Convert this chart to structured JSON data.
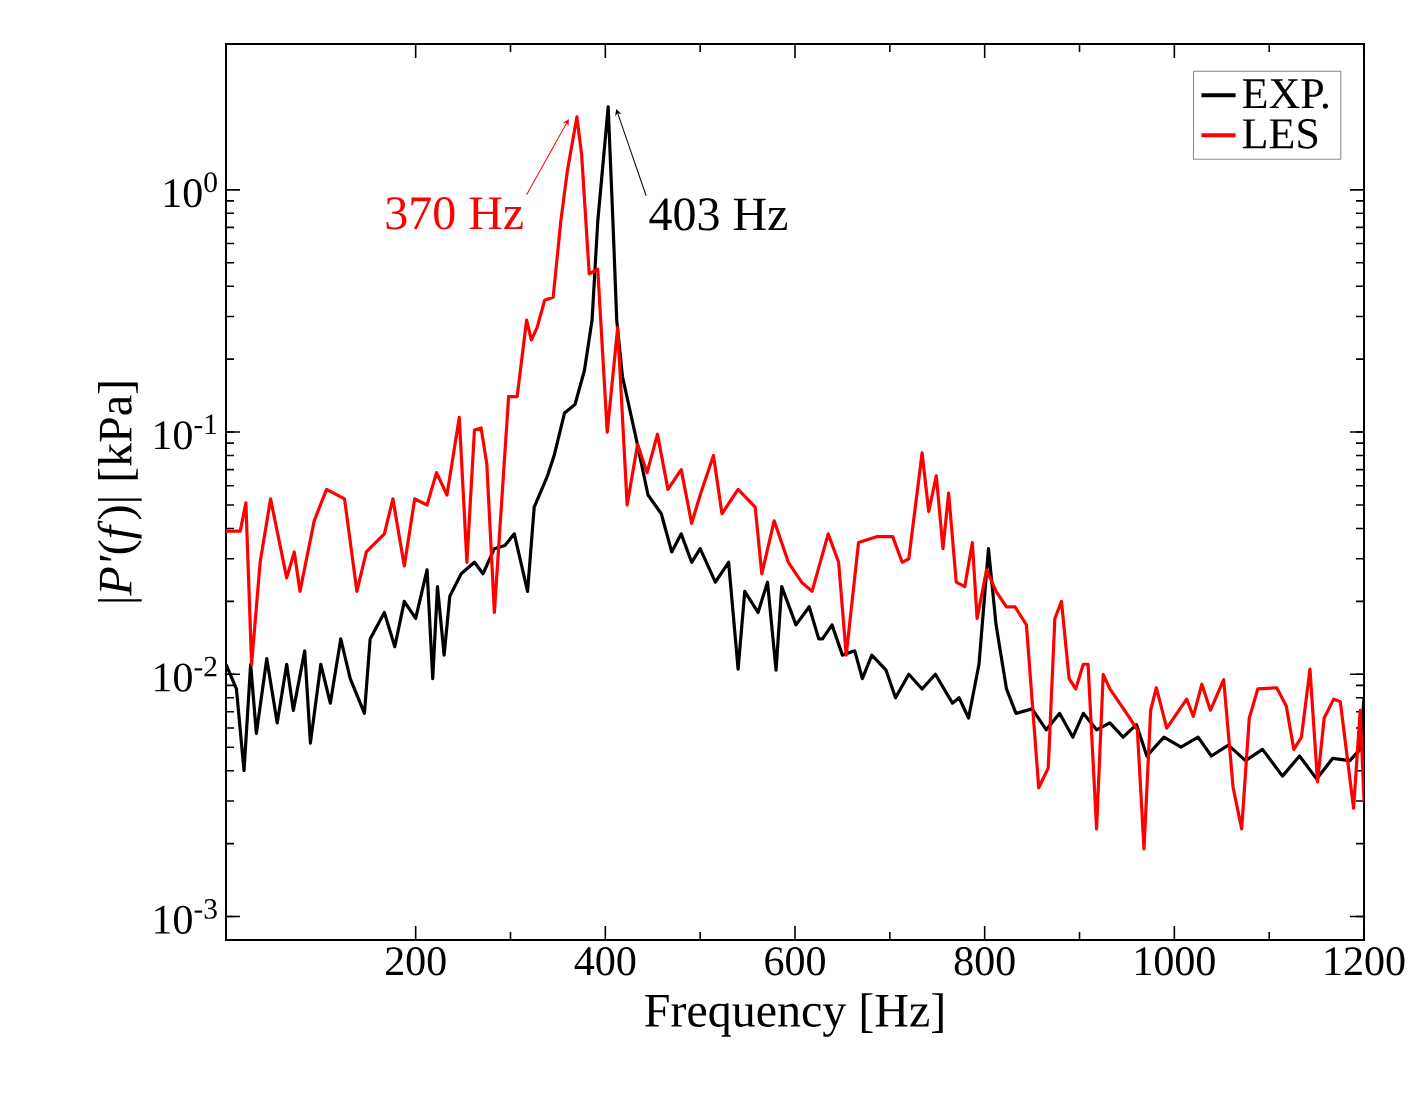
{
  "chart_data": {
    "type": "line",
    "xlabel": "Frequency [Hz]",
    "ylabel": "|*P'*(*f*)| [kPa]",
    "log": "y",
    "legend": "top right",
    "grid": false,
    "line_style": "solid",
    "marker": "none",
    "xlim": [
      0,
      1200
    ],
    "xticks": [
      200,
      400,
      600,
      800,
      1000,
      1200
    ],
    "ylim": [
      0.0008,
      4
    ],
    "yticks": [
      {
        "value": 0.001,
        "label": "10$^{-3}$"
      },
      {
        "value": 0.01,
        "label": "10$^{-2}$"
      },
      {
        "value": 0.1,
        "label": "10$^{-1}$"
      },
      {
        "value": 1,
        "label": "10$^{0}$"
      }
    ],
    "annotations": [
      {
        "text": "403 Hz",
        "x": 403,
        "y": 2.2
      },
      {
        "text": "370 Hz",
        "x": 370,
        "y": 2.0
      }
    ],
    "series": [
      {
        "name": "EXP.",
        "color": "#000000",
        "x": [
          0,
          11,
          19,
          26,
          32,
          43,
          54,
          64,
          71,
          83,
          89,
          100,
          110,
          121,
          131,
          146,
          152,
          167,
          178,
          188,
          200,
          212,
          218,
          223,
          230,
          236,
          248,
          262,
          271,
          283,
          294,
          304,
          318,
          325,
          339,
          346,
          357,
          368,
          378,
          386,
          392,
          403,
          408,
          412,
          418,
          432,
          445,
          459,
          470,
          480,
          491,
          500,
          516,
          530,
          540,
          547,
          561,
          571,
          580,
          586,
          601,
          615,
          625,
          629,
          639,
          650,
          663,
          671,
          681,
          696,
          706,
          720,
          734,
          748,
          766,
          773,
          783,
          794,
          804,
          812,
          823,
          833,
          850,
          865,
          879,
          893,
          904,
          918,
          932,
          946,
          960,
          971,
          989,
          1007,
          1025,
          1039,
          1057,
          1075,
          1093,
          1114,
          1132,
          1150,
          1167,
          1185,
          1196,
          1200
        ],
        "values": [
          0.011,
          0.0087,
          0.004,
          0.011,
          0.0057,
          0.0116,
          0.0063,
          0.011,
          0.0071,
          0.0125,
          0.0052,
          0.011,
          0.0076,
          0.014,
          0.0096,
          0.0069,
          0.014,
          0.018,
          0.013,
          0.02,
          0.017,
          0.027,
          0.0096,
          0.023,
          0.012,
          0.021,
          0.026,
          0.029,
          0.026,
          0.033,
          0.034,
          0.038,
          0.022,
          0.049,
          0.066,
          0.08,
          0.12,
          0.13,
          0.18,
          0.29,
          0.74,
          2.2,
          0.74,
          0.29,
          0.17,
          0.096,
          0.055,
          0.046,
          0.032,
          0.038,
          0.029,
          0.033,
          0.024,
          0.029,
          0.0105,
          0.022,
          0.018,
          0.024,
          0.0104,
          0.023,
          0.016,
          0.019,
          0.014,
          0.014,
          0.016,
          0.012,
          0.0125,
          0.0096,
          0.012,
          0.0104,
          0.008,
          0.01,
          0.0087,
          0.01,
          0.0076,
          0.008,
          0.0066,
          0.011,
          0.033,
          0.016,
          0.0087,
          0.0069,
          0.0072,
          0.0059,
          0.0069,
          0.0055,
          0.0069,
          0.0059,
          0.0063,
          0.0055,
          0.0062,
          0.0046,
          0.0055,
          0.005,
          0.0055,
          0.0046,
          0.0051,
          0.0044,
          0.0049,
          0.0038,
          0.0046,
          0.0037,
          0.0045,
          0.0044,
          0.0049,
          0.008
        ]
      },
      {
        "name": "LES",
        "color": "#ff0000",
        "x": [
          0,
          15,
          21,
          27,
          36,
          47,
          64,
          72,
          78,
          93,
          106,
          125,
          138,
          148,
          167,
          176,
          188,
          199,
          212,
          222,
          233,
          246,
          254,
          262,
          269,
          275,
          283,
          298,
          307,
          317,
          322,
          328,
          336,
          345,
          353,
          360,
          370,
          375,
          383,
          392,
          402,
          413,
          423,
          434,
          444,
          455,
          466,
          480,
          491,
          500,
          514,
          523,
          540,
          558,
          565,
          578,
          593,
          607,
          618,
          635,
          646,
          654,
          667,
          686,
          703,
          713,
          720,
          734,
          741,
          749,
          756,
          762,
          770,
          779,
          787,
          792,
          802,
          812,
          823,
          832,
          844,
          857,
          867,
          874,
          881,
          889,
          896,
          904,
          909,
          918,
          925,
          932,
          953,
          961,
          968,
          975,
          981,
          992,
          1013,
          1020,
          1029,
          1038,
          1052,
          1062,
          1071,
          1079,
          1088,
          1108,
          1118,
          1126,
          1134,
          1143,
          1151,
          1158,
          1168,
          1175,
          1189,
          1196,
          1200
        ],
        "values": [
          0.039,
          0.039,
          0.051,
          0.011,
          0.029,
          0.053,
          0.025,
          0.032,
          0.022,
          0.043,
          0.058,
          0.053,
          0.022,
          0.032,
          0.038,
          0.053,
          0.028,
          0.053,
          0.05,
          0.068,
          0.055,
          0.115,
          0.029,
          0.102,
          0.104,
          0.074,
          0.018,
          0.14,
          0.14,
          0.29,
          0.24,
          0.27,
          0.35,
          0.36,
          0.74,
          1.2,
          2.0,
          1.4,
          0.45,
          0.47,
          0.1,
          0.27,
          0.05,
          0.089,
          0.068,
          0.098,
          0.058,
          0.07,
          0.042,
          0.055,
          0.08,
          0.046,
          0.058,
          0.049,
          0.026,
          0.043,
          0.029,
          0.024,
          0.022,
          0.038,
          0.029,
          0.012,
          0.035,
          0.037,
          0.037,
          0.029,
          0.03,
          0.082,
          0.047,
          0.066,
          0.033,
          0.056,
          0.024,
          0.023,
          0.035,
          0.017,
          0.027,
          0.022,
          0.019,
          0.019,
          0.016,
          0.0034,
          0.0041,
          0.017,
          0.02,
          0.0096,
          0.0087,
          0.011,
          0.011,
          0.0023,
          0.01,
          0.0087,
          0.0066,
          0.0059,
          0.0019,
          0.0071,
          0.0088,
          0.006,
          0.0079,
          0.0067,
          0.0091,
          0.0071,
          0.0095,
          0.0034,
          0.0023,
          0.0066,
          0.0087,
          0.0088,
          0.0074,
          0.0049,
          0.0055,
          0.0105,
          0.0036,
          0.0066,
          0.0079,
          0.0077,
          0.0028,
          0.0071,
          0.003
        ]
      }
    ]
  }
}
